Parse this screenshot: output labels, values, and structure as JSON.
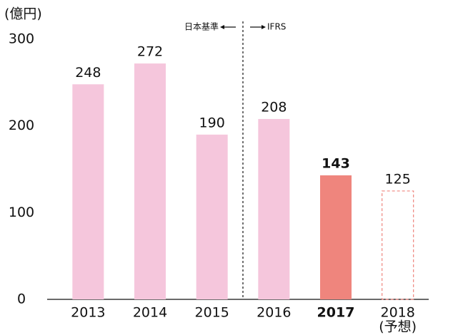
{
  "chart_data": {
    "type": "bar",
    "unit_label": "(億円)",
    "categories": [
      "2013",
      "2014",
      "2015",
      "2016",
      "2017",
      "2018"
    ],
    "values": [
      248,
      272,
      190,
      208,
      143,
      125
    ],
    "styles": [
      "normal",
      "normal",
      "normal",
      "normal",
      "highlight",
      "forecast"
    ],
    "forecast_label": "(予想)",
    "color": "#f5c6dc",
    "highlight_color": "#ef857d",
    "forecast_color": "#ef857d",
    "ylim": [
      0,
      300
    ],
    "yticks": [
      0,
      100,
      200,
      300
    ],
    "grid": false,
    "annotations": {
      "left": "日本基準",
      "right": "IFRS"
    }
  }
}
